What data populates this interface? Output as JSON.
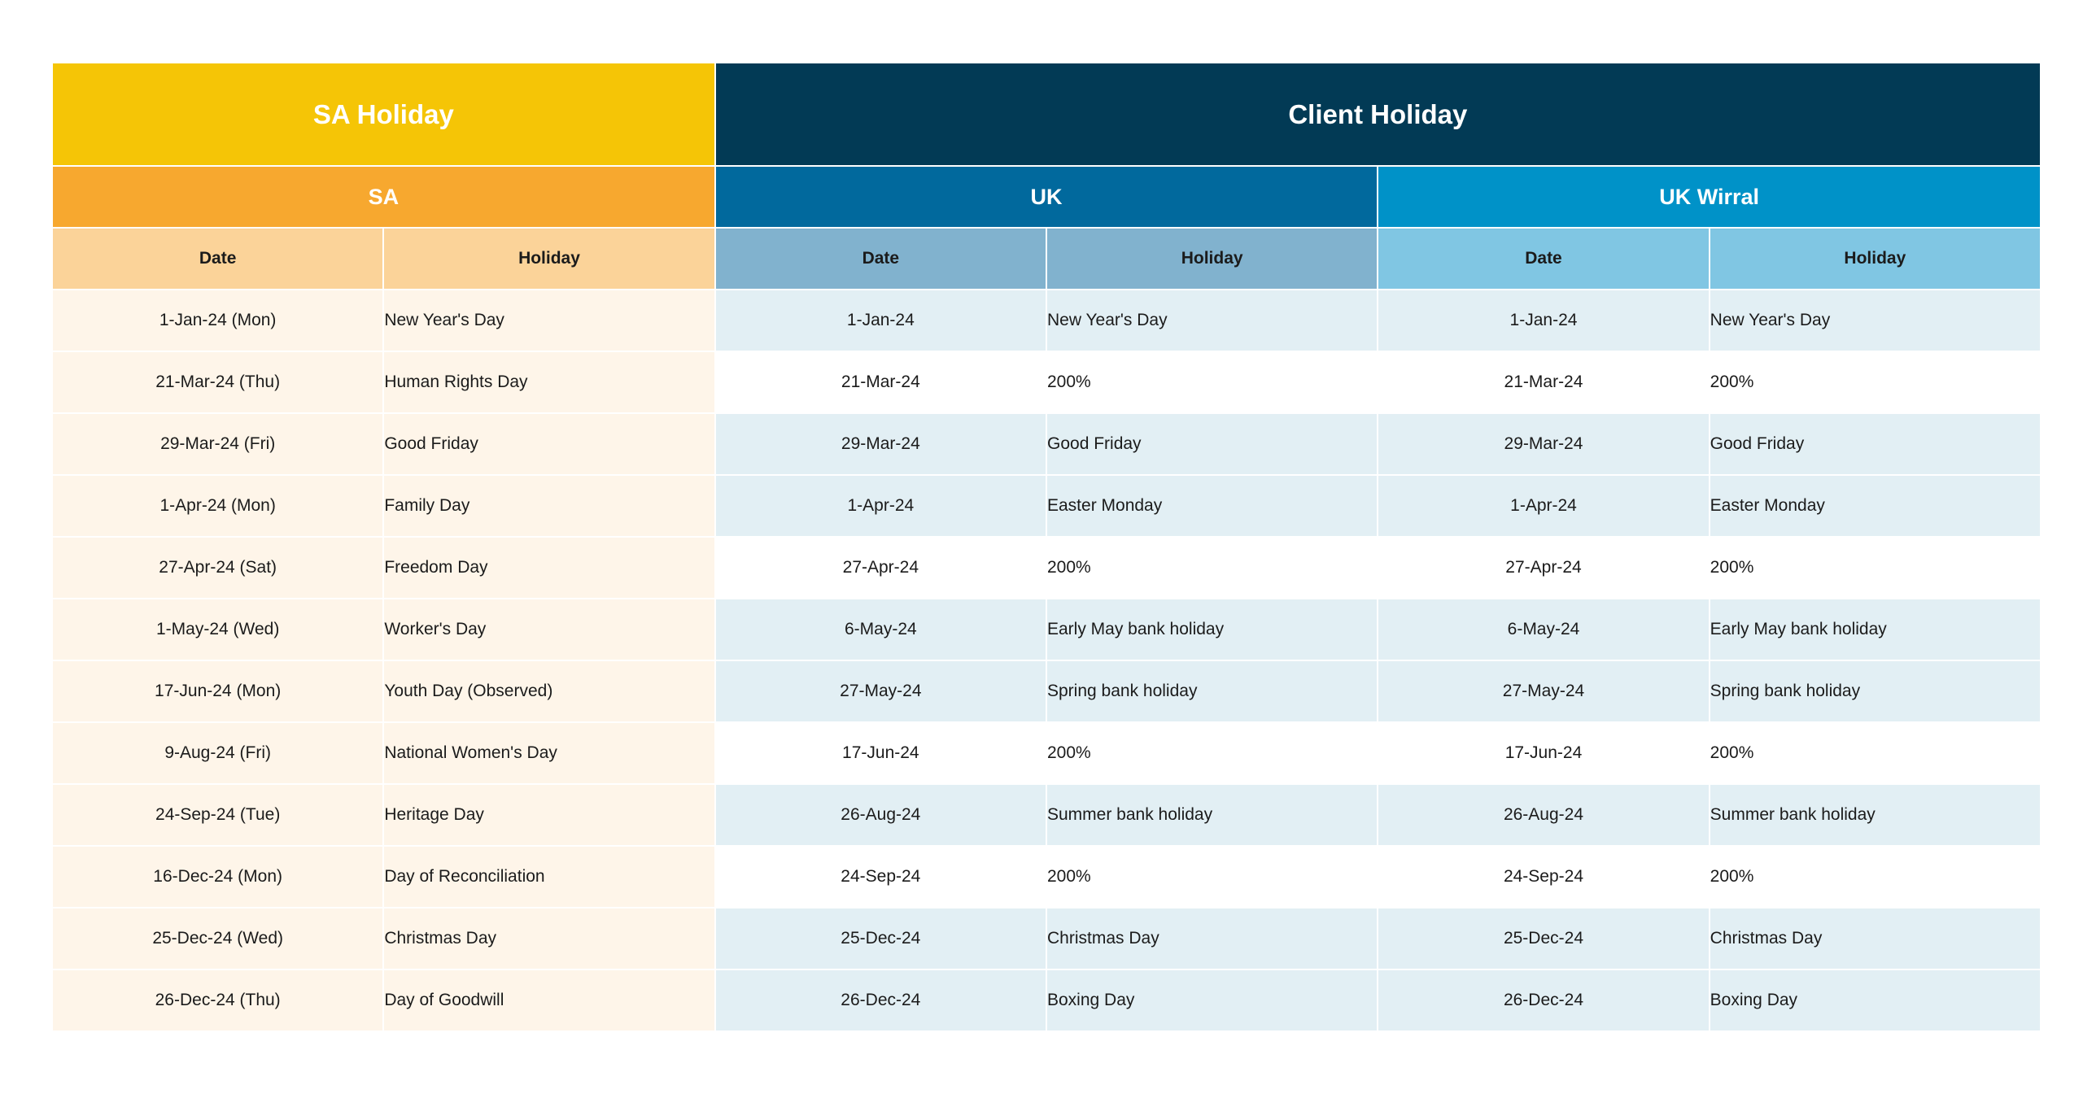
{
  "headers": {
    "sa_holiday": "SA Holiday",
    "client_holiday": "Client Holiday",
    "sa": "SA",
    "uk": "UK",
    "uk_wirral": "UK Wirral",
    "date": "Date",
    "holiday": "Holiday"
  },
  "colors": {
    "sa_title": "#f5c506",
    "client_title": "#023a55",
    "sa_region": "#f7a82f",
    "uk_region": "#01699d",
    "uk_wirral_region": "#0092c8",
    "sa_column_header": "#fbd399",
    "uk_column_header": "#81b2ce",
    "uk_wirral_column_header": "#80c6e3",
    "sa_row": "#fef5e9",
    "uk_row_shaded": "#e2eff4"
  },
  "rows": [
    {
      "sa_date": "1-Jan-24 (Mon)",
      "sa_holiday": "New Year's Day",
      "uk_date": "1-Jan-24",
      "uk_holiday": "New Year's Day",
      "wirral_date": "1-Jan-24",
      "wirral_holiday": "New Year's Day",
      "shaded": true
    },
    {
      "sa_date": "21-Mar-24 (Thu)",
      "sa_holiday": "Human Rights Day",
      "uk_date": "21-Mar-24",
      "uk_holiday": "200%",
      "wirral_date": "21-Mar-24",
      "wirral_holiday": "200%",
      "shaded": false
    },
    {
      "sa_date": "29-Mar-24 (Fri)",
      "sa_holiday": "Good Friday",
      "uk_date": "29-Mar-24",
      "uk_holiday": "Good Friday",
      "wirral_date": "29-Mar-24",
      "wirral_holiday": "Good Friday",
      "shaded": true
    },
    {
      "sa_date": "1-Apr-24 (Mon)",
      "sa_holiday": "Family Day",
      "uk_date": "1-Apr-24",
      "uk_holiday": "Easter Monday",
      "wirral_date": "1-Apr-24",
      "wirral_holiday": "Easter Monday",
      "shaded": true
    },
    {
      "sa_date": "27-Apr-24 (Sat)",
      "sa_holiday": "Freedom Day",
      "uk_date": "27-Apr-24",
      "uk_holiday": "200%",
      "wirral_date": "27-Apr-24",
      "wirral_holiday": "200%",
      "shaded": false
    },
    {
      "sa_date": "1-May-24 (Wed)",
      "sa_holiday": "Worker's Day",
      "uk_date": "6-May-24",
      "uk_holiday": "Early May bank holiday",
      "wirral_date": "6-May-24",
      "wirral_holiday": "Early May bank holiday",
      "shaded": true
    },
    {
      "sa_date": "17-Jun-24 (Mon)",
      "sa_holiday": "Youth Day (Observed)",
      "uk_date": "27-May-24",
      "uk_holiday": "Spring bank holiday",
      "wirral_date": "27-May-24",
      "wirral_holiday": "Spring bank holiday",
      "shaded": true
    },
    {
      "sa_date": "9-Aug-24 (Fri)",
      "sa_holiday": "National Women's Day",
      "uk_date": "17-Jun-24",
      "uk_holiday": "200%",
      "wirral_date": "17-Jun-24",
      "wirral_holiday": "200%",
      "shaded": false
    },
    {
      "sa_date": "24-Sep-24 (Tue)",
      "sa_holiday": "Heritage Day",
      "uk_date": "26-Aug-24",
      "uk_holiday": "Summer bank holiday",
      "wirral_date": "26-Aug-24",
      "wirral_holiday": "Summer bank holiday",
      "shaded": true
    },
    {
      "sa_date": "16-Dec-24 (Mon)",
      "sa_holiday": "Day of Reconciliation",
      "uk_date": "24-Sep-24",
      "uk_holiday": "200%",
      "wirral_date": "24-Sep-24",
      "wirral_holiday": "200%",
      "shaded": false
    },
    {
      "sa_date": "25-Dec-24 (Wed)",
      "sa_holiday": "Christmas Day",
      "uk_date": "25-Dec-24",
      "uk_holiday": "Christmas Day",
      "wirral_date": "25-Dec-24",
      "wirral_holiday": "Christmas Day",
      "shaded": true
    },
    {
      "sa_date": "26-Dec-24 (Thu)",
      "sa_holiday": "Day of Goodwill",
      "uk_date": "26-Dec-24",
      "uk_holiday": "Boxing Day",
      "wirral_date": "26-Dec-24",
      "wirral_holiday": "Boxing Day",
      "shaded": true
    }
  ]
}
